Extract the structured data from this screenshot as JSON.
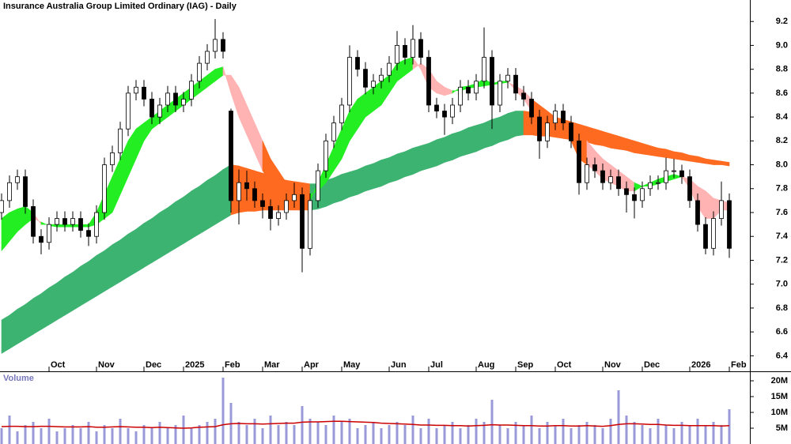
{
  "chart_data": [
    {
      "type": "candlestick",
      "title": "Insurance Australia Group Limited Ordinary (IAG) - Daily",
      "categories": [
        null,
        null,
        null,
        null,
        null,
        null,
        "Oct",
        null,
        null,
        null,
        null,
        null,
        "Nov",
        null,
        null,
        null,
        null,
        null,
        "Dec",
        null,
        null,
        null,
        null,
        "2025",
        null,
        null,
        null,
        null,
        "Feb",
        null,
        null,
        null,
        null,
        "Mar",
        null,
        null,
        null,
        null,
        "Apr",
        null,
        null,
        null,
        null,
        "May",
        null,
        null,
        null,
        null,
        null,
        "Jun",
        null,
        null,
        null,
        null,
        "Jul",
        null,
        null,
        null,
        null,
        null,
        "Aug",
        null,
        null,
        null,
        null,
        "Sep",
        null,
        null,
        null,
        null,
        "Oct",
        null,
        null,
        null,
        null,
        null,
        "Nov",
        null,
        null,
        null,
        null,
        "Dec",
        null,
        null,
        null,
        null,
        null,
        "2026",
        null,
        null,
        null,
        null,
        "Feb"
      ],
      "candles": [
        [
          7.6,
          7.76,
          7.54,
          7.7
        ],
        [
          7.7,
          7.91,
          7.64,
          7.85
        ],
        [
          7.85,
          7.96,
          7.79,
          7.9
        ],
        [
          7.9,
          7.96,
          7.59,
          7.65
        ],
        [
          7.65,
          7.71,
          7.34,
          7.4
        ],
        [
          7.4,
          7.46,
          7.25,
          7.35
        ],
        [
          7.35,
          7.56,
          7.29,
          7.5
        ],
        [
          7.5,
          7.61,
          7.44,
          7.55
        ],
        [
          7.55,
          7.61,
          7.44,
          7.5
        ],
        [
          7.5,
          7.61,
          7.44,
          7.55
        ],
        [
          7.55,
          7.61,
          7.39,
          7.45
        ],
        [
          7.45,
          7.51,
          7.32,
          7.4
        ],
        [
          7.4,
          7.66,
          7.34,
          7.6
        ],
        [
          7.6,
          8.06,
          7.54,
          8.0
        ],
        [
          8.0,
          8.16,
          7.94,
          8.1
        ],
        [
          8.1,
          8.36,
          8.04,
          8.3
        ],
        [
          8.3,
          8.66,
          8.24,
          8.6
        ],
        [
          8.6,
          8.71,
          8.54,
          8.65
        ],
        [
          8.65,
          8.71,
          8.49,
          8.55
        ],
        [
          8.55,
          8.61,
          8.34,
          8.4
        ],
        [
          8.4,
          8.56,
          8.34,
          8.5
        ],
        [
          8.5,
          8.66,
          8.44,
          8.6
        ],
        [
          8.6,
          8.66,
          8.44,
          8.5
        ],
        [
          8.5,
          8.61,
          8.44,
          8.55
        ],
        [
          8.55,
          8.76,
          8.49,
          8.7
        ],
        [
          8.7,
          8.91,
          8.64,
          8.85
        ],
        [
          8.85,
          9.01,
          8.79,
          8.95
        ],
        [
          8.95,
          9.22,
          8.89,
          9.05
        ],
        [
          9.05,
          9.11,
          8.89,
          8.95
        ],
        [
          8.45,
          8.47,
          7.6,
          7.7
        ],
        [
          7.7,
          7.96,
          7.5,
          7.85
        ],
        [
          7.85,
          7.95,
          7.7,
          7.8
        ],
        [
          7.8,
          7.86,
          7.64,
          7.7
        ],
        [
          7.7,
          7.76,
          7.55,
          7.65
        ],
        [
          7.65,
          7.71,
          7.45,
          7.55
        ],
        [
          7.55,
          7.66,
          7.49,
          7.6
        ],
        [
          7.6,
          7.76,
          7.54,
          7.7
        ],
        [
          7.7,
          7.85,
          7.64,
          7.75
        ],
        [
          7.75,
          7.81,
          7.1,
          7.3
        ],
        [
          7.3,
          7.76,
          7.24,
          7.7
        ],
        [
          7.7,
          8.01,
          7.64,
          7.95
        ],
        [
          7.95,
          8.26,
          7.89,
          8.2
        ],
        [
          8.2,
          8.41,
          8.14,
          8.35
        ],
        [
          8.35,
          8.56,
          8.29,
          8.5
        ],
        [
          8.5,
          9.0,
          8.44,
          8.9
        ],
        [
          8.9,
          8.96,
          8.74,
          8.8
        ],
        [
          8.8,
          8.86,
          8.59,
          8.65
        ],
        [
          8.65,
          8.76,
          8.59,
          8.7
        ],
        [
          8.7,
          8.81,
          8.64,
          8.75
        ],
        [
          8.75,
          8.91,
          8.69,
          8.85
        ],
        [
          8.85,
          9.12,
          8.79,
          9.0
        ],
        [
          9.0,
          9.06,
          8.84,
          8.9
        ],
        [
          8.9,
          9.17,
          8.84,
          9.05
        ],
        [
          9.05,
          9.11,
          8.84,
          8.9
        ],
        [
          8.9,
          8.96,
          8.44,
          8.5
        ],
        [
          8.5,
          8.56,
          8.39,
          8.45
        ],
        [
          8.45,
          8.51,
          8.25,
          8.4
        ],
        [
          8.4,
          8.56,
          8.34,
          8.5
        ],
        [
          8.5,
          8.71,
          8.44,
          8.65
        ],
        [
          8.65,
          8.71,
          8.54,
          8.6
        ],
        [
          8.6,
          8.76,
          8.54,
          8.7
        ],
        [
          8.7,
          9.15,
          8.64,
          8.9
        ],
        [
          8.9,
          8.96,
          8.3,
          8.5
        ],
        [
          8.5,
          8.76,
          8.44,
          8.7
        ],
        [
          8.7,
          8.81,
          8.64,
          8.75
        ],
        [
          8.75,
          8.81,
          8.54,
          8.6
        ],
        [
          8.6,
          8.66,
          8.49,
          8.55
        ],
        [
          8.55,
          8.61,
          8.34,
          8.4
        ],
        [
          8.4,
          8.46,
          8.05,
          8.2
        ],
        [
          8.2,
          8.41,
          8.14,
          8.35
        ],
        [
          8.35,
          8.51,
          8.29,
          8.45
        ],
        [
          8.45,
          8.51,
          8.29,
          8.35
        ],
        [
          8.35,
          8.41,
          8.14,
          8.2
        ],
        [
          8.2,
          8.26,
          7.75,
          7.85
        ],
        [
          7.85,
          8.06,
          7.79,
          8.0
        ],
        [
          8.0,
          8.06,
          7.89,
          7.95
        ],
        [
          7.95,
          8.01,
          7.79,
          7.85
        ],
        [
          7.85,
          7.96,
          7.79,
          7.9
        ],
        [
          7.9,
          7.96,
          7.74,
          7.8
        ],
        [
          7.8,
          7.86,
          7.6,
          7.75
        ],
        [
          7.75,
          7.81,
          7.55,
          7.7
        ],
        [
          7.7,
          7.86,
          7.64,
          7.8
        ],
        [
          7.8,
          7.91,
          7.74,
          7.85
        ],
        [
          7.85,
          7.91,
          7.79,
          7.85
        ],
        [
          7.85,
          8.06,
          7.79,
          7.95
        ],
        [
          7.95,
          8.05,
          7.89,
          7.95
        ],
        [
          7.95,
          8.0,
          7.84,
          7.9
        ],
        [
          7.9,
          7.96,
          7.64,
          7.7
        ],
        [
          7.7,
          7.76,
          7.44,
          7.5
        ],
        [
          7.5,
          7.56,
          7.25,
          7.3
        ],
        [
          7.3,
          7.61,
          7.24,
          7.55
        ],
        [
          7.55,
          7.86,
          7.49,
          7.7
        ],
        [
          7.7,
          7.76,
          7.22,
          7.3
        ]
      ],
      "up_color": "#ffffff",
      "down_color": "#000000",
      "long_band": {
        "rising_color": "#3cb371",
        "falling_color": "#ff6a21",
        "upper": [
          6.7,
          6.74,
          6.79,
          6.83,
          6.88,
          6.92,
          6.97,
          7.01,
          7.06,
          7.1,
          7.15,
          7.19,
          7.24,
          7.28,
          7.33,
          7.37,
          7.42,
          7.46,
          7.51,
          7.55,
          7.6,
          7.64,
          7.69,
          7.73,
          7.78,
          7.82,
          7.87,
          7.91,
          7.96,
          8.0,
          7.99,
          7.97,
          7.95,
          7.93,
          7.91,
          7.89,
          7.87,
          7.86,
          7.85,
          7.84,
          7.84,
          7.87,
          7.89,
          7.92,
          7.94,
          7.96,
          7.99,
          8.01,
          8.04,
          8.06,
          8.09,
          8.11,
          8.14,
          8.16,
          8.18,
          8.21,
          8.23,
          8.26,
          8.28,
          8.31,
          8.33,
          8.35,
          8.38,
          8.4,
          8.43,
          8.45,
          8.45,
          8.44,
          8.43,
          8.42,
          8.4,
          8.38,
          8.36,
          8.34,
          8.32,
          8.3,
          8.28,
          8.26,
          8.24,
          8.22,
          8.2,
          8.18,
          8.16,
          8.14,
          8.13,
          8.11,
          8.1,
          8.08,
          8.07,
          8.05,
          8.04,
          8.03,
          8.02
        ],
        "lower": [
          6.42,
          6.46,
          6.5,
          6.54,
          6.58,
          6.62,
          6.66,
          6.7,
          6.74,
          6.78,
          6.82,
          6.86,
          6.9,
          6.94,
          6.98,
          7.02,
          7.06,
          7.1,
          7.14,
          7.18,
          7.22,
          7.26,
          7.3,
          7.34,
          7.38,
          7.42,
          7.46,
          7.5,
          7.54,
          7.58,
          7.6,
          7.61,
          7.61,
          7.62,
          7.62,
          7.62,
          7.62,
          7.62,
          7.62,
          7.62,
          7.63,
          7.65,
          7.68,
          7.7,
          7.73,
          7.75,
          7.78,
          7.8,
          7.82,
          7.85,
          7.87,
          7.9,
          7.92,
          7.95,
          7.97,
          7.99,
          8.02,
          8.04,
          8.07,
          8.09,
          8.11,
          8.14,
          8.16,
          8.19,
          8.21,
          8.24,
          8.25,
          8.25,
          8.24,
          8.24,
          8.23,
          8.22,
          8.21,
          8.2,
          8.19,
          8.17,
          8.16,
          8.14,
          8.13,
          8.12,
          8.1,
          8.09,
          8.08,
          8.07,
          8.06,
          8.05,
          8.04,
          8.03,
          8.02,
          8.01,
          8.0,
          8.0,
          7.99
        ]
      },
      "short_band": {
        "bull_color": "#22ee22",
        "bear_color": "#ffb3b3",
        "cross_color": "#ff6a21",
        "fast": [
          7.55,
          7.6,
          7.63,
          7.65,
          7.6,
          7.5,
          7.5,
          7.5,
          7.5,
          7.5,
          7.5,
          7.5,
          7.6,
          7.75,
          7.9,
          8.05,
          8.2,
          8.3,
          8.35,
          8.4,
          8.45,
          8.5,
          8.55,
          8.6,
          8.65,
          8.7,
          8.75,
          8.8,
          8.82,
          8.6,
          8.4,
          8.25,
          8.1,
          7.95,
          7.85,
          7.8,
          7.75,
          7.75,
          7.65,
          7.7,
          7.85,
          8.0,
          8.15,
          8.3,
          8.45,
          8.55,
          8.6,
          8.65,
          8.7,
          8.75,
          8.85,
          8.88,
          8.9,
          8.8,
          8.65,
          8.6,
          8.58,
          8.6,
          8.65,
          8.66,
          8.68,
          8.72,
          8.68,
          8.7,
          8.7,
          8.62,
          8.55,
          8.45,
          8.35,
          8.3,
          8.3,
          8.25,
          8.2,
          8.05,
          8.0,
          7.95,
          7.88,
          7.85,
          7.82,
          7.78,
          7.78,
          7.82,
          7.85,
          7.88,
          7.9,
          7.92,
          7.9,
          7.8,
          7.65,
          7.55,
          7.55,
          7.62,
          7.62
        ],
        "slow": [
          7.28,
          7.36,
          7.44,
          7.5,
          7.55,
          7.52,
          7.49,
          7.48,
          7.48,
          7.48,
          7.48,
          7.48,
          7.5,
          7.55,
          7.6,
          7.75,
          7.9,
          8.05,
          8.2,
          8.3,
          8.35,
          8.4,
          8.45,
          8.5,
          8.55,
          8.6,
          8.65,
          8.7,
          8.75,
          8.75,
          8.65,
          8.5,
          8.35,
          8.2,
          8.05,
          7.95,
          7.85,
          7.82,
          7.78,
          7.75,
          7.78,
          7.85,
          7.95,
          8.05,
          8.2,
          8.3,
          8.4,
          8.45,
          8.5,
          8.6,
          8.7,
          8.75,
          8.8,
          8.85,
          8.8,
          8.7,
          8.65,
          8.62,
          8.62,
          8.64,
          8.65,
          8.66,
          8.67,
          8.68,
          8.69,
          8.66,
          8.62,
          8.55,
          8.5,
          8.45,
          8.4,
          8.35,
          8.3,
          8.25,
          8.2,
          8.12,
          8.05,
          8.0,
          7.95,
          7.9,
          7.85,
          7.82,
          7.82,
          7.84,
          7.86,
          7.88,
          7.9,
          7.88,
          7.82,
          7.78,
          7.72,
          7.7,
          7.68
        ]
      },
      "ylim": [
        6.27,
        9.38
      ],
      "yticks": [
        6.4,
        6.6,
        6.8,
        {
          "value": 7,
          "label": "7.0"
        },
        7.2,
        7.4,
        7.6,
        7.8,
        {
          "value": 8,
          "label": "8.0"
        },
        8.2,
        8.4,
        8.6,
        8.8,
        {
          "value": 9,
          "label": "9.0"
        },
        9.2
      ]
    },
    {
      "type": "bar",
      "title": "Volume",
      "color": "#9a9ad8",
      "values": [
        5,
        9,
        4,
        6,
        7,
        5,
        8,
        4,
        5,
        6,
        5,
        7,
        4,
        6,
        5,
        8,
        5,
        4,
        6,
        5,
        7,
        5,
        6,
        9,
        5,
        6,
        7,
        8,
        21,
        13,
        7,
        6,
        8,
        5,
        9,
        6,
        7,
        6,
        12,
        8,
        7,
        6,
        9,
        7,
        8,
        5,
        6,
        7,
        5,
        6,
        7,
        6,
        9,
        5,
        8,
        5,
        6,
        7,
        5,
        6,
        8,
        7,
        14,
        6,
        5,
        7,
        6,
        9,
        5,
        7,
        6,
        8,
        5,
        6,
        7,
        6,
        5,
        8,
        17,
        9,
        7,
        6,
        5,
        8,
        6,
        5,
        7,
        6,
        8,
        6,
        7,
        6,
        11
      ],
      "ma": {
        "color": "#cc0000",
        "values": [
          5.5,
          5.6,
          5.6,
          5.5,
          5.5,
          5.6,
          5.6,
          5.5,
          5.4,
          5.4,
          5.4,
          5.5,
          5.3,
          5.3,
          5.4,
          5.5,
          5.4,
          5.3,
          5.3,
          5.2,
          5.3,
          5.2,
          5.1,
          5.0,
          5.1,
          5.3,
          5.4,
          5.5,
          6.1,
          6.4,
          6.5,
          6.4,
          6.4,
          6.3,
          6.4,
          6.5,
          6.6,
          6.6,
          6.9,
          7.0,
          7.0,
          7.1,
          7.2,
          7.2,
          7.1,
          7.0,
          6.9,
          6.8,
          6.6,
          6.5,
          6.4,
          6.3,
          6.2,
          6.0,
          6.0,
          5.9,
          5.9,
          5.8,
          5.8,
          5.7,
          5.8,
          5.9,
          6.1,
          6.0,
          6.0,
          5.9,
          5.8,
          5.8,
          5.7,
          5.7,
          5.8,
          5.8,
          5.7,
          5.7,
          5.8,
          5.7,
          5.6,
          5.8,
          6.2,
          6.4,
          6.4,
          6.3,
          6.2,
          6.2,
          6.0,
          5.9,
          5.9,
          5.8,
          5.8,
          5.8,
          5.8,
          5.7,
          5.8
        ]
      },
      "ylim": [
        0,
        22.5
      ],
      "yticks": [
        {
          "value": 5,
          "label": "5M"
        },
        {
          "value": 10,
          "label": "10M"
        },
        {
          "value": 15,
          "label": "15M"
        },
        {
          "value": 20,
          "label": "20M"
        }
      ]
    }
  ]
}
